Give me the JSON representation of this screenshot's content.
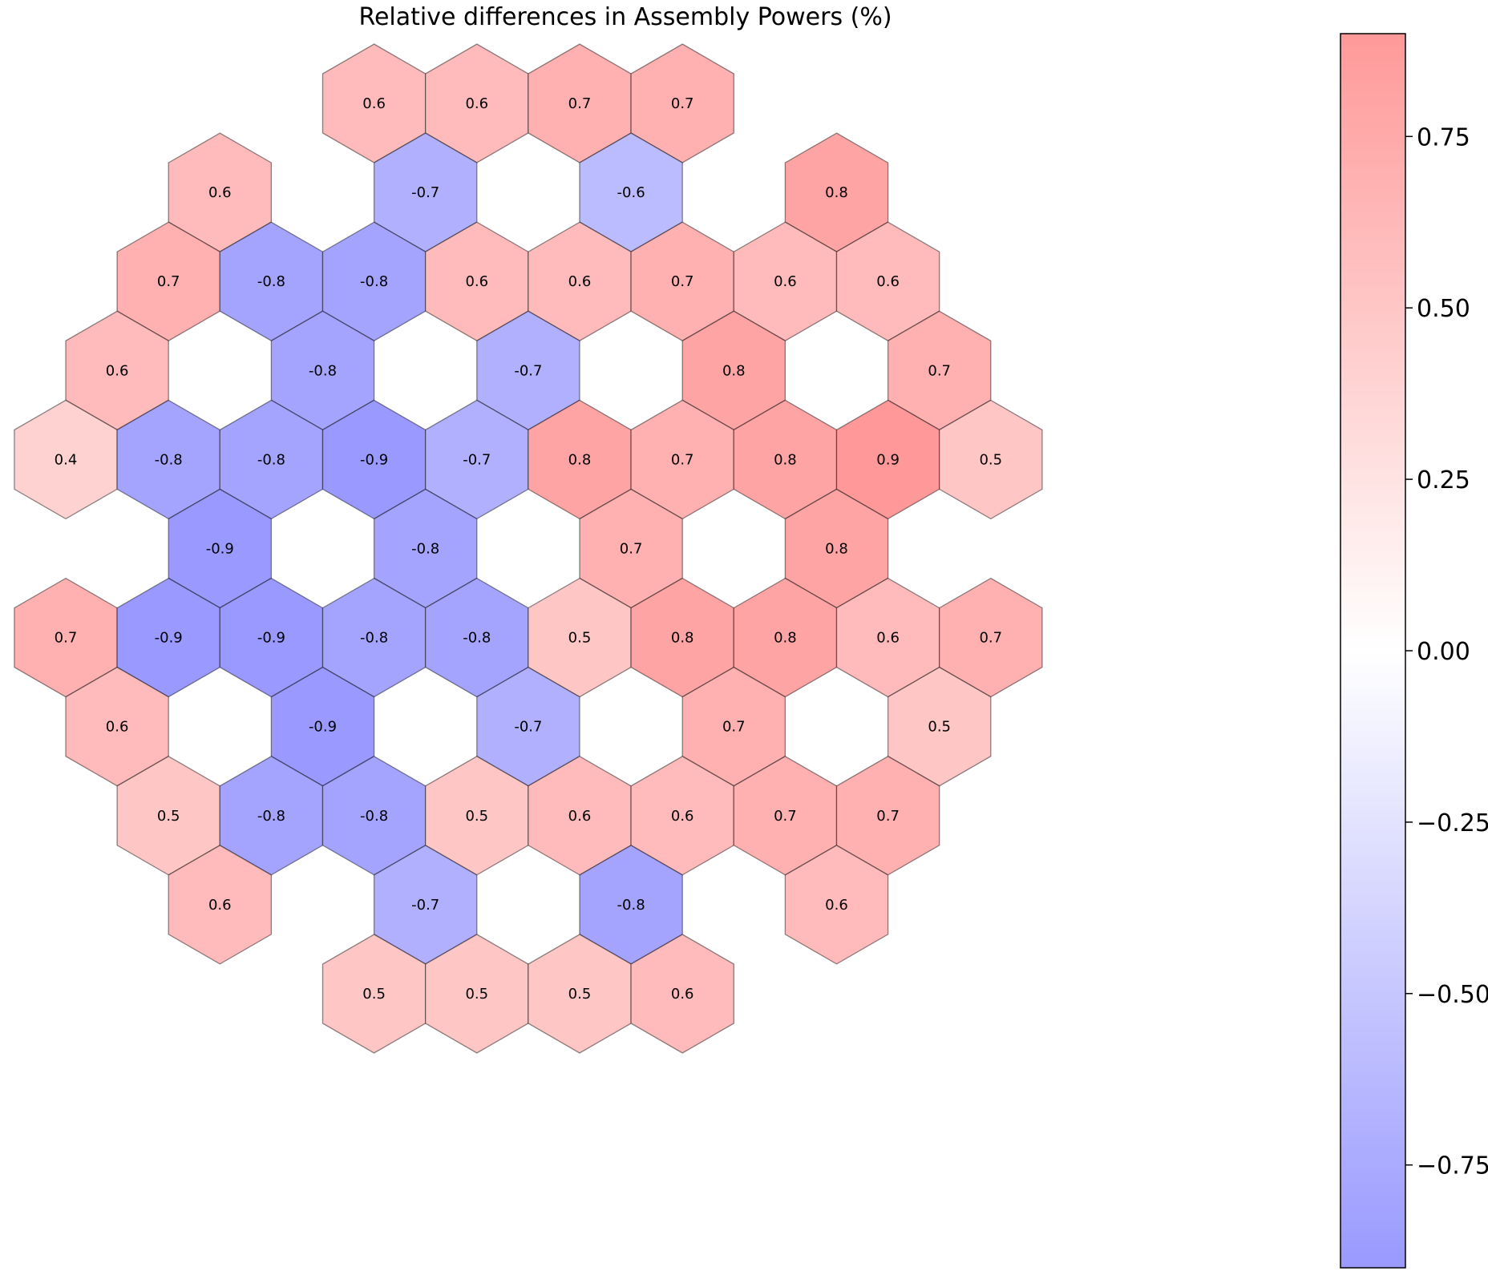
{
  "chart_data": {
    "type": "heatmap",
    "title": "Relative differences in Assembly Powers (%)",
    "colormap": {
      "low": "#9999ff",
      "mid": "#ffffff",
      "high": "#ff9999"
    },
    "color_range": [
      -0.9,
      0.9
    ],
    "colorbar": {
      "position": "right",
      "ticks": [
        0.75,
        0.5,
        0.25,
        0.0,
        -0.25,
        -0.5,
        -0.75
      ],
      "tick_labels": [
        "0.75",
        "0.50",
        "0.25",
        "0.00",
        "−0.25",
        "−0.50",
        "−0.75"
      ]
    },
    "cells": [
      {
        "row": 0,
        "col": 6,
        "value": 0.6,
        "label": "0.6"
      },
      {
        "row": 0,
        "col": 8,
        "value": 0.6,
        "label": "0.6"
      },
      {
        "row": 0,
        "col": 10,
        "value": 0.7,
        "label": "0.7"
      },
      {
        "row": 0,
        "col": 12,
        "value": 0.7,
        "label": "0.7"
      },
      {
        "row": 1,
        "col": 3,
        "value": 0.6,
        "label": "0.6"
      },
      {
        "row": 1,
        "col": 7,
        "value": -0.7,
        "label": "-0.7"
      },
      {
        "row": 1,
        "col": 11,
        "value": -0.6,
        "label": "-0.6"
      },
      {
        "row": 1,
        "col": 15,
        "value": 0.8,
        "label": "0.8"
      },
      {
        "row": 2,
        "col": 2,
        "value": 0.7,
        "label": "0.7"
      },
      {
        "row": 2,
        "col": 4,
        "value": -0.8,
        "label": "-0.8"
      },
      {
        "row": 2,
        "col": 6,
        "value": -0.8,
        "label": "-0.8"
      },
      {
        "row": 2,
        "col": 8,
        "value": 0.6,
        "label": "0.6"
      },
      {
        "row": 2,
        "col": 10,
        "value": 0.6,
        "label": "0.6"
      },
      {
        "row": 2,
        "col": 12,
        "value": 0.7,
        "label": "0.7"
      },
      {
        "row": 2,
        "col": 14,
        "value": 0.6,
        "label": "0.6"
      },
      {
        "row": 2,
        "col": 16,
        "value": 0.6,
        "label": "0.6"
      },
      {
        "row": 3,
        "col": 1,
        "value": 0.6,
        "label": "0.6"
      },
      {
        "row": 3,
        "col": 5,
        "value": -0.8,
        "label": "-0.8"
      },
      {
        "row": 3,
        "col": 9,
        "value": -0.7,
        "label": "-0.7"
      },
      {
        "row": 3,
        "col": 13,
        "value": 0.8,
        "label": "0.8"
      },
      {
        "row": 3,
        "col": 17,
        "value": 0.7,
        "label": "0.7"
      },
      {
        "row": 4,
        "col": 0,
        "value": 0.4,
        "label": "0.4"
      },
      {
        "row": 4,
        "col": 2,
        "value": -0.8,
        "label": "-0.8"
      },
      {
        "row": 4,
        "col": 4,
        "value": -0.8,
        "label": "-0.8"
      },
      {
        "row": 4,
        "col": 6,
        "value": -0.9,
        "label": "-0.9"
      },
      {
        "row": 4,
        "col": 8,
        "value": -0.7,
        "label": "-0.7"
      },
      {
        "row": 4,
        "col": 10,
        "value": 0.8,
        "label": "0.8"
      },
      {
        "row": 4,
        "col": 12,
        "value": 0.7,
        "label": "0.7"
      },
      {
        "row": 4,
        "col": 14,
        "value": 0.8,
        "label": "0.8"
      },
      {
        "row": 4,
        "col": 16,
        "value": 0.9,
        "label": "0.9"
      },
      {
        "row": 4,
        "col": 18,
        "value": 0.5,
        "label": "0.5"
      },
      {
        "row": 5,
        "col": 3,
        "value": -0.9,
        "label": "-0.9"
      },
      {
        "row": 5,
        "col": 7,
        "value": -0.8,
        "label": "-0.8"
      },
      {
        "row": 5,
        "col": 11,
        "value": 0.7,
        "label": "0.7"
      },
      {
        "row": 5,
        "col": 15,
        "value": 0.8,
        "label": "0.8"
      },
      {
        "row": 6,
        "col": 0,
        "value": 0.7,
        "label": "0.7"
      },
      {
        "row": 6,
        "col": 2,
        "value": -0.9,
        "label": "-0.9"
      },
      {
        "row": 6,
        "col": 4,
        "value": -0.9,
        "label": "-0.9"
      },
      {
        "row": 6,
        "col": 6,
        "value": -0.8,
        "label": "-0.8"
      },
      {
        "row": 6,
        "col": 8,
        "value": -0.8,
        "label": "-0.8"
      },
      {
        "row": 6,
        "col": 10,
        "value": 0.5,
        "label": "0.5"
      },
      {
        "row": 6,
        "col": 12,
        "value": 0.8,
        "label": "0.8"
      },
      {
        "row": 6,
        "col": 14,
        "value": 0.8,
        "label": "0.8"
      },
      {
        "row": 6,
        "col": 16,
        "value": 0.6,
        "label": "0.6"
      },
      {
        "row": 6,
        "col": 18,
        "value": 0.7,
        "label": "0.7"
      },
      {
        "row": 7,
        "col": 1,
        "value": 0.6,
        "label": "0.6"
      },
      {
        "row": 7,
        "col": 5,
        "value": -0.9,
        "label": "-0.9"
      },
      {
        "row": 7,
        "col": 9,
        "value": -0.7,
        "label": "-0.7"
      },
      {
        "row": 7,
        "col": 13,
        "value": 0.7,
        "label": "0.7"
      },
      {
        "row": 7,
        "col": 17,
        "value": 0.5,
        "label": "0.5"
      },
      {
        "row": 8,
        "col": 2,
        "value": 0.5,
        "label": "0.5"
      },
      {
        "row": 8,
        "col": 4,
        "value": -0.8,
        "label": "-0.8"
      },
      {
        "row": 8,
        "col": 6,
        "value": -0.8,
        "label": "-0.8"
      },
      {
        "row": 8,
        "col": 8,
        "value": 0.5,
        "label": "0.5"
      },
      {
        "row": 8,
        "col": 10,
        "value": 0.6,
        "label": "0.6"
      },
      {
        "row": 8,
        "col": 12,
        "value": 0.6,
        "label": "0.6"
      },
      {
        "row": 8,
        "col": 14,
        "value": 0.7,
        "label": "0.7"
      },
      {
        "row": 8,
        "col": 16,
        "value": 0.7,
        "label": "0.7"
      },
      {
        "row": 9,
        "col": 3,
        "value": 0.6,
        "label": "0.6"
      },
      {
        "row": 9,
        "col": 7,
        "value": -0.7,
        "label": "-0.7"
      },
      {
        "row": 9,
        "col": 11,
        "value": -0.8,
        "label": "-0.8"
      },
      {
        "row": 9,
        "col": 15,
        "value": 0.6,
        "label": "0.6"
      },
      {
        "row": 10,
        "col": 6,
        "value": 0.5,
        "label": "0.5"
      },
      {
        "row": 10,
        "col": 8,
        "value": 0.5,
        "label": "0.5"
      },
      {
        "row": 10,
        "col": 10,
        "value": 0.5,
        "label": "0.5"
      },
      {
        "row": 10,
        "col": 12,
        "value": 0.6,
        "label": "0.6"
      }
    ]
  }
}
